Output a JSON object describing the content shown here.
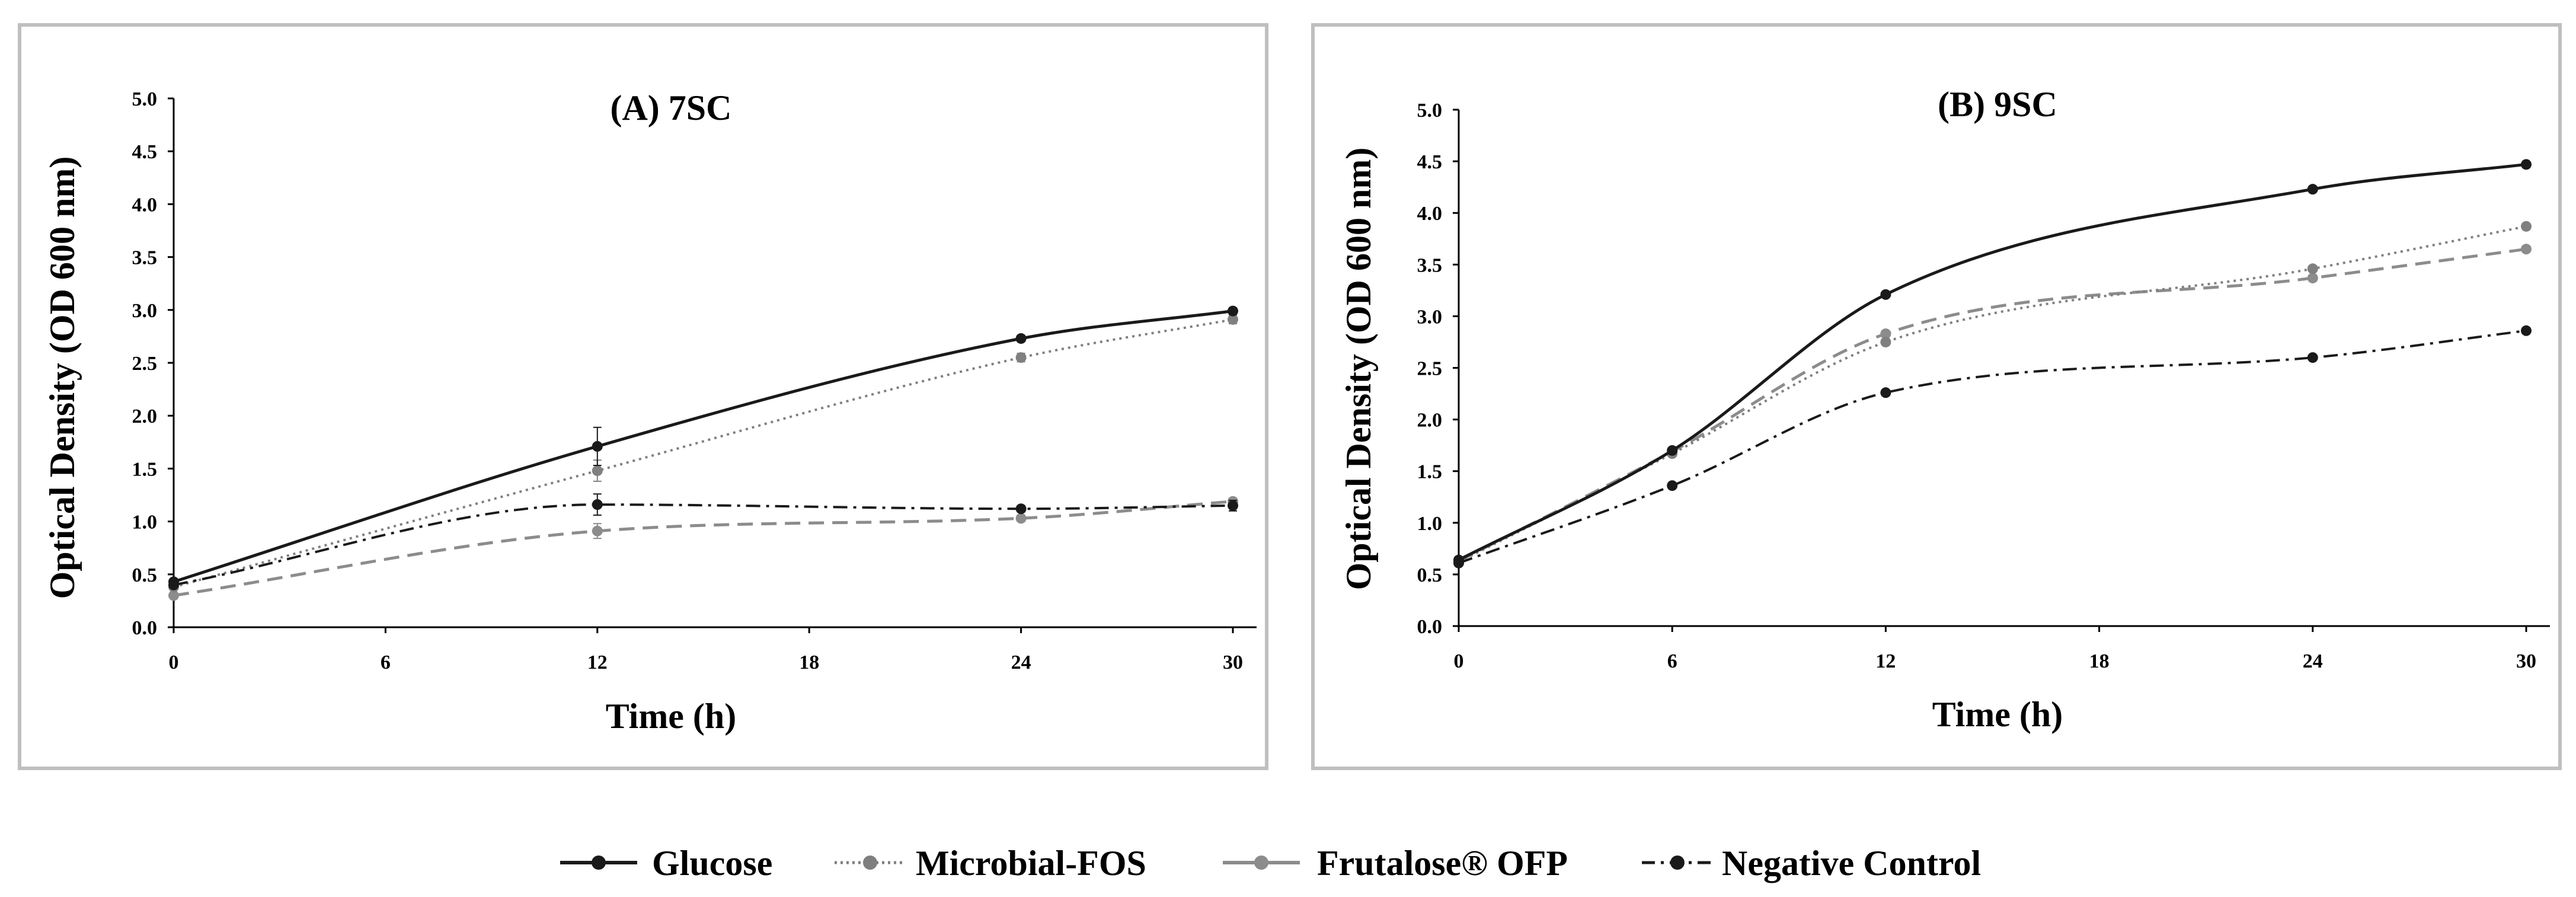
{
  "chart_data": [
    {
      "type": "line",
      "title": "(A) 7SC",
      "xlabel": "Time (h)",
      "ylabel": "Optical Density (OD 600 nm)",
      "xlim": [
        0,
        30
      ],
      "ylim": [
        0,
        5.0
      ],
      "xticks": [
        "0",
        "6",
        "12",
        "18",
        "24",
        "30"
      ],
      "yticks": [
        "0.0",
        "0.5",
        "1.0",
        "1.5",
        "2.0",
        "2.5",
        "3.0",
        "3.5",
        "4.0",
        "4.5",
        "5.0"
      ],
      "x": [
        0,
        12,
        24,
        30
      ],
      "series": [
        {
          "name": "Glucose",
          "values": [
            0.43,
            1.71,
            2.73,
            2.99
          ],
          "errors": [
            0.02,
            0.18,
            0.03,
            0.03
          ]
        },
        {
          "name": "Microbial-FOS",
          "values": [
            0.38,
            1.48,
            2.55,
            2.91
          ],
          "errors": [
            0.02,
            0.1,
            0.04,
            0.04
          ]
        },
        {
          "name": "Frutalose® OFP",
          "values": [
            0.3,
            0.91,
            1.03,
            1.19
          ],
          "errors": [
            0.02,
            0.07,
            0.03,
            0.03
          ]
        },
        {
          "name": "Negative Control",
          "values": [
            0.4,
            1.16,
            1.12,
            1.15
          ],
          "errors": [
            0.02,
            0.1,
            0.03,
            0.05
          ]
        }
      ]
    },
    {
      "type": "line",
      "title": "(B) 9SC",
      "xlabel": "Time (h)",
      "ylabel": "Optical Density (OD 600 nm)",
      "xlim": [
        0,
        30
      ],
      "ylim": [
        0,
        5.0
      ],
      "xticks": [
        "0",
        "6",
        "12",
        "18",
        "24",
        "30"
      ],
      "yticks": [
        "0.0",
        "0.5",
        "1.0",
        "1.5",
        "2.0",
        "2.5",
        "3.0",
        "3.5",
        "4.0",
        "4.5",
        "5.0"
      ],
      "x": [
        0,
        6,
        12,
        24,
        30
      ],
      "series": [
        {
          "name": "Glucose",
          "values": [
            0.64,
            1.7,
            3.21,
            4.23,
            4.47
          ],
          "errors": [
            0.02,
            0.02,
            0.02,
            0.02,
            0.02
          ]
        },
        {
          "name": "Microbial-FOS",
          "values": [
            0.62,
            1.67,
            2.75,
            3.46,
            3.87
          ],
          "errors": [
            0.02,
            0.02,
            0.03,
            0.03,
            0.02
          ]
        },
        {
          "name": "Frutalose® OFP",
          "values": [
            0.63,
            1.69,
            2.83,
            3.37,
            3.65
          ],
          "errors": [
            0.02,
            0.02,
            0.03,
            0.03,
            0.03
          ]
        },
        {
          "name": "Negative Control",
          "values": [
            0.61,
            1.36,
            2.26,
            2.6,
            2.86
          ],
          "errors": [
            0.02,
            0.02,
            0.02,
            0.02,
            0.02
          ]
        }
      ]
    }
  ],
  "legend": {
    "items": [
      {
        "label": "Glucose",
        "line": "solid",
        "marker": "dot",
        "color": "#1a1a1a"
      },
      {
        "label": "Microbial-FOS",
        "line": "dotted",
        "marker": "dot",
        "color": "#7f7f7f"
      },
      {
        "label": "Frutalose® OFP",
        "line": "solid",
        "marker": "dot",
        "color": "#8c8c8c"
      },
      {
        "label": "Negative Control",
        "line": "dashdot",
        "marker": "dot",
        "color": "#1a1a1a"
      }
    ]
  },
  "colors": {
    "glucose": "#1a1a1a",
    "microbial_fos": "#808080",
    "frutalose": "#8c8c8c",
    "negative_control": "#1a1a1a",
    "panel_border": "#bfbfbf",
    "axis": "#000000"
  }
}
